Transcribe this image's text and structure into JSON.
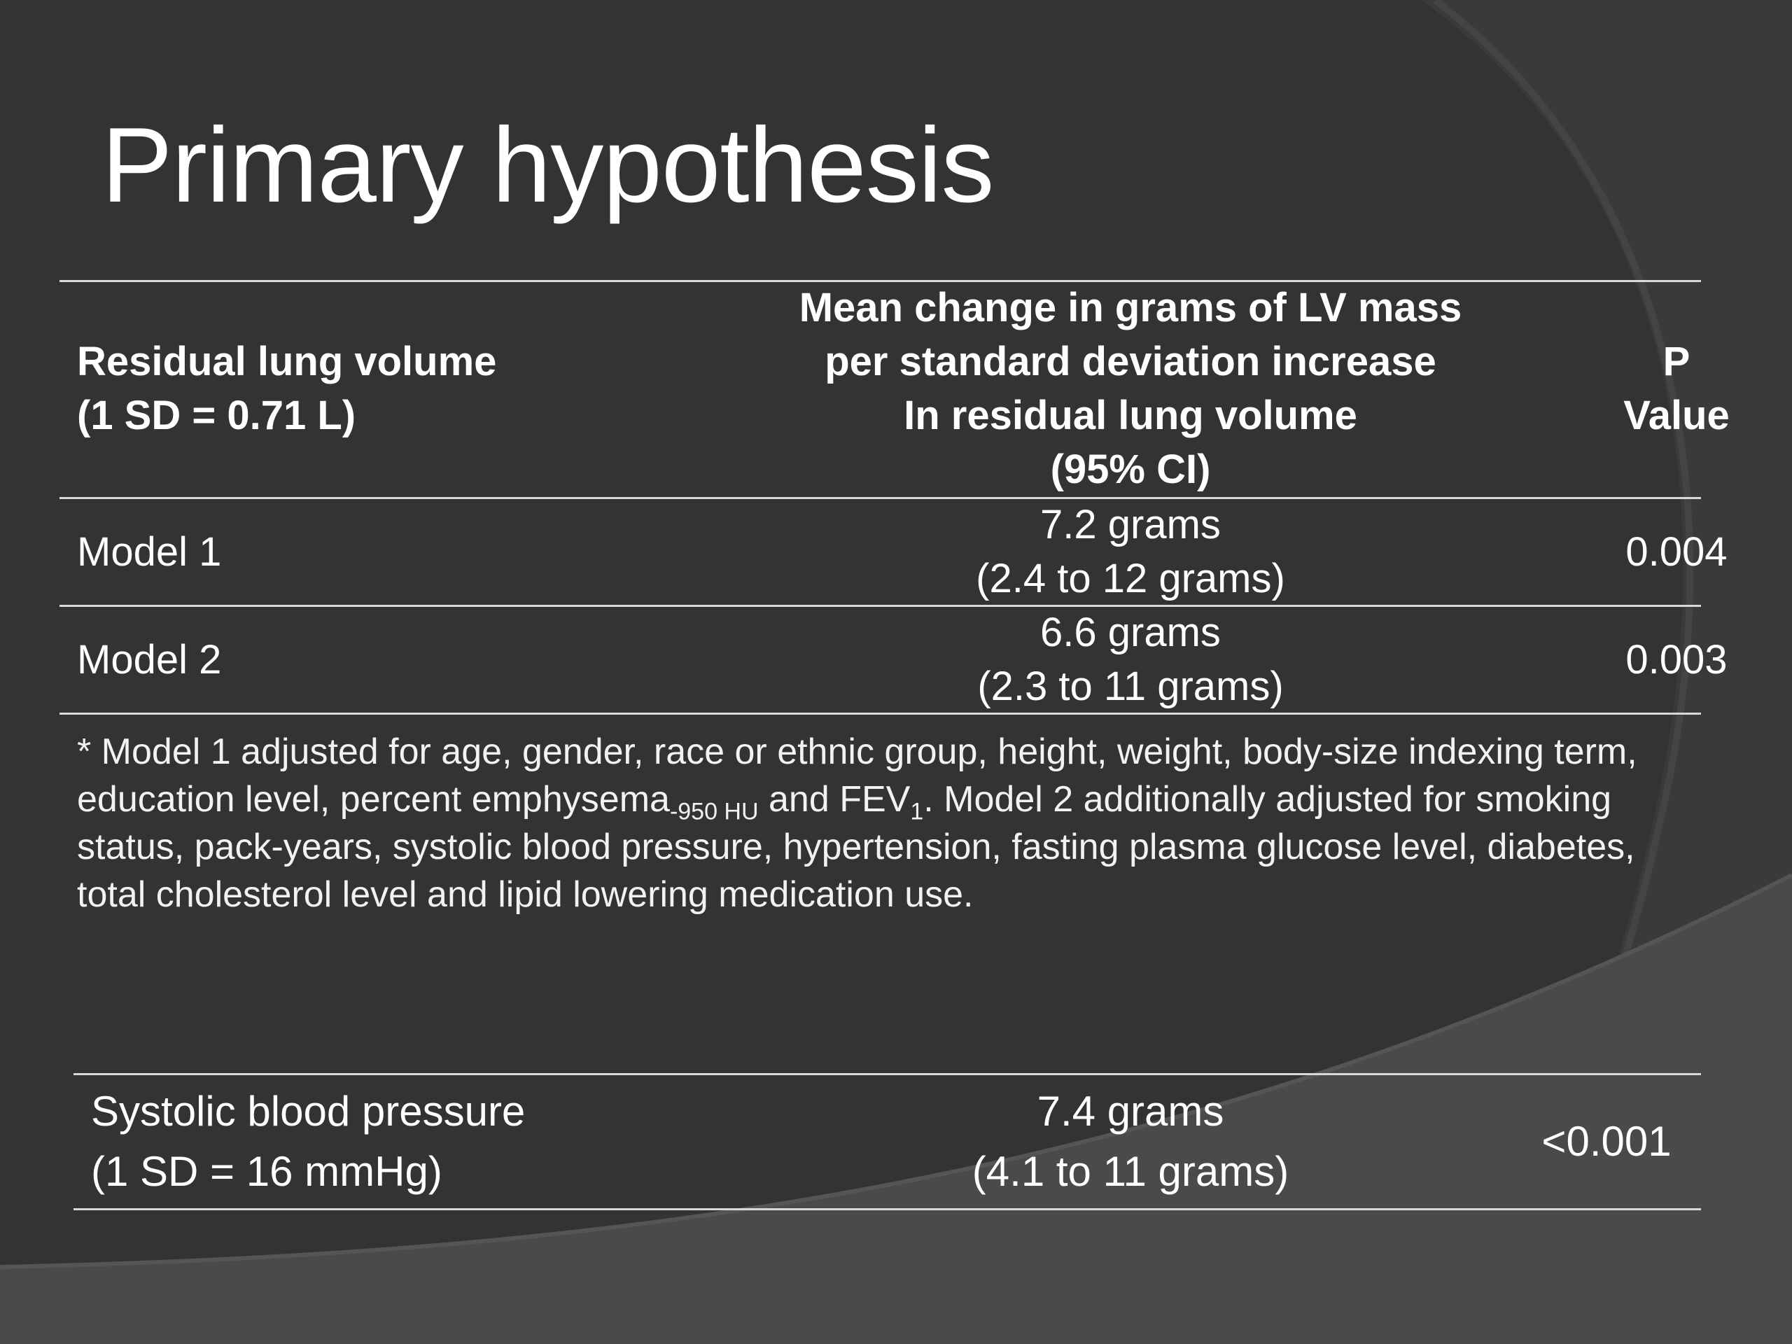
{
  "slide": {
    "title": "Primary hypothesis",
    "colors": {
      "background": "#333333",
      "swoosh": "#4a4a4a",
      "text": "#ffffff",
      "rule": "#d9d9d9"
    }
  },
  "table1": {
    "header": {
      "col1_line1": "Residual lung volume",
      "col1_line2": "(1 SD = 0.71 L)",
      "col2_line1": "Mean change in grams of LV mass",
      "col2_line2": "per standard deviation increase",
      "col2_line3": "In residual lung volume",
      "col2_line4": "(95% CI)",
      "col3_line1": "P",
      "col3_line2": "Value"
    },
    "rows": [
      {
        "label": "Model 1",
        "estimate": "7.2 grams",
        "ci": "(2.4 to 12 grams)",
        "p": "0.004"
      },
      {
        "label": "Model 2",
        "estimate": "6.6 grams",
        "ci": "(2.3 to 11 grams)",
        "p": "0.003"
      }
    ]
  },
  "footnote": {
    "part1": "* Model 1 adjusted for age, gender, race or ethnic group, height, weight, body-size indexing term, education level, percent emphysema",
    "sub1": "-950 HU",
    "part2": " and FEV",
    "sub2": "1",
    "part3": ".  Model 2 additionally adjusted for smoking status, pack-years, systolic blood pressure, hypertension, fasting plasma glucose level, diabetes, total cholesterol level and lipid lowering medication use."
  },
  "table2": {
    "label_line1": "Systolic blood pressure",
    "label_line2": "(1 SD = 16 mmHg)",
    "estimate": "7.4 grams",
    "ci": "(4.1 to 11 grams)",
    "p": "<0.001"
  }
}
